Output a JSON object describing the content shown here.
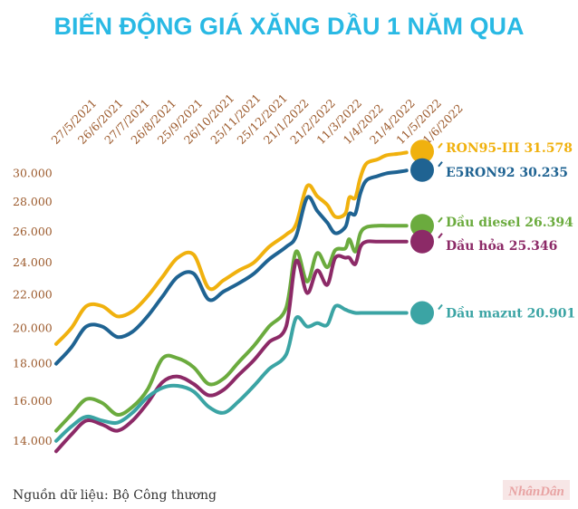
{
  "chart_data": {
    "type": "line",
    "title": "BIẾN ĐỘNG GIÁ XĂNG DẦU 1 NĂM QUA",
    "x_ticks": [
      "27/5/2021",
      "26/6/2021",
      "27/7/2021",
      "26/8/2021",
      "25/9/2021",
      "26/10/2021",
      "25/11/2021",
      "25/12/2021",
      "21/1/2022",
      "21/2/2022",
      "11/3/2022",
      "1/4/2022",
      "21/4/2022",
      "11/5/2022",
      "1/6/2022"
    ],
    "y_ticks": [
      "14.000",
      "16.000",
      "18.000",
      "20.000",
      "22.000",
      "24.000",
      "26.000",
      "28.000",
      "30.000"
    ],
    "ylim": [
      13000,
      31000
    ],
    "y_scale": "sqrt",
    "x": [
      "2021-05-27",
      "2021-06-11",
      "2021-06-26",
      "2021-07-12",
      "2021-07-27",
      "2021-08-11",
      "2021-08-26",
      "2021-09-10",
      "2021-09-25",
      "2021-10-11",
      "2021-10-26",
      "2021-11-10",
      "2021-11-25",
      "2021-12-10",
      "2021-12-25",
      "2022-01-11",
      "2022-01-21",
      "2022-02-01",
      "2022-02-11",
      "2022-02-21",
      "2022-03-01",
      "2022-03-11",
      "2022-03-15",
      "2022-03-21",
      "2022-03-26",
      "2022-04-01",
      "2022-04-12",
      "2022-04-21",
      "2022-05-02",
      "2022-05-11",
      "2022-05-23",
      "2022-06-01"
    ],
    "series": [
      {
        "name": "RON95-III",
        "label": "RON95-III 31.578",
        "color": "#f0b10e",
        "values": [
          19100,
          20000,
          21300,
          21300,
          20700,
          21000,
          21900,
          23100,
          24300,
          24500,
          22400,
          22900,
          23500,
          24000,
          25000,
          25800,
          26500,
          29100,
          28400,
          27800,
          27000,
          27200,
          28300,
          28300,
          29700,
          30700,
          31000,
          31300,
          31400,
          31500,
          31578,
          31578
        ]
      },
      {
        "name": "E5RON92",
        "label": "E5RON92 30.235",
        "color": "#1f6392",
        "values": [
          18000,
          18900,
          20100,
          20100,
          19500,
          19800,
          20700,
          21900,
          23100,
          23300,
          21700,
          22200,
          22700,
          23300,
          24200,
          25000,
          25700,
          28300,
          27400,
          26600,
          25900,
          26300,
          27200,
          27200,
          28600,
          29500,
          29800,
          30000,
          30100,
          30200,
          30235,
          30235
        ]
      },
      {
        "name": "Dầu diesel",
        "label": "Dầu diesel 26.394",
        "color": "#6bab3e",
        "values": [
          14500,
          15300,
          16100,
          15900,
          15300,
          15700,
          16600,
          18300,
          18300,
          17800,
          16900,
          17200,
          18100,
          19000,
          20100,
          21200,
          24700,
          22800,
          24600,
          23700,
          24800,
          24900,
          25500,
          24700,
          25900,
          26300,
          26394,
          26394,
          26394,
          26394,
          26394,
          26394
        ]
      },
      {
        "name": "Dầu hỏa",
        "label": "Dầu hỏa 25.346",
        "color": "#8c2a67",
        "values": [
          13500,
          14300,
          15000,
          14800,
          14500,
          15000,
          15900,
          17000,
          17300,
          16900,
          16300,
          16600,
          17400,
          18200,
          19200,
          20100,
          24100,
          22100,
          23500,
          22600,
          24300,
          24300,
          24300,
          23900,
          25000,
          25346,
          25346,
          25346,
          25346,
          25346,
          25346,
          25346
        ]
      },
      {
        "name": "Dầu mazut",
        "label": "Dầu mazut 20.901",
        "color": "#3ba4a4",
        "values": [
          14000,
          14700,
          15200,
          15000,
          14900,
          15400,
          16200,
          16700,
          16800,
          16500,
          15700,
          15400,
          16000,
          16800,
          17700,
          18500,
          20600,
          20100,
          20300,
          20200,
          21300,
          21100,
          21000,
          20901,
          20901,
          20901,
          20901,
          20901,
          20901,
          20901,
          20901,
          20901
        ]
      }
    ],
    "grid": false,
    "legend": "right, at line ends",
    "source": "Nguồn dữ liệu: Bộ Công thương",
    "brand": "NhânDân"
  }
}
